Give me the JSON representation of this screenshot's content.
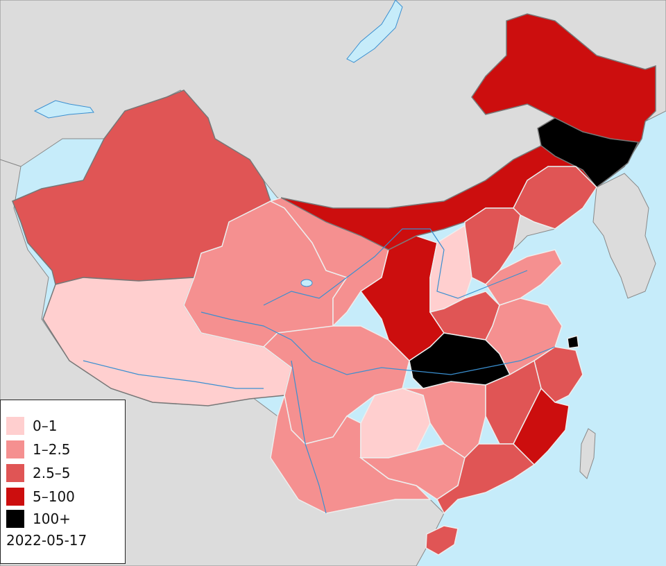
{
  "colors": {
    "sea": "#c6ecfa",
    "land": "#dcdcdc",
    "border": "#777777",
    "river": "#3a8fd0",
    "bin_0_1": "#ffcfcf",
    "bin_1_2_5": "#f59090",
    "bin_2_5_5": "#e05555",
    "bin_5_100": "#cc0e0e",
    "bin_100_plus": "#000000"
  },
  "legend": {
    "items": [
      {
        "label": "0–1",
        "color": "#ffcfcf"
      },
      {
        "label": "1–2.5",
        "color": "#f59090"
      },
      {
        "label": "2.5–5",
        "color": "#e05555"
      },
      {
        "label": "5–100",
        "color": "#cc0e0e"
      },
      {
        "label": "100+",
        "color": "#000000"
      }
    ],
    "date": "2022-05-17"
  }
}
